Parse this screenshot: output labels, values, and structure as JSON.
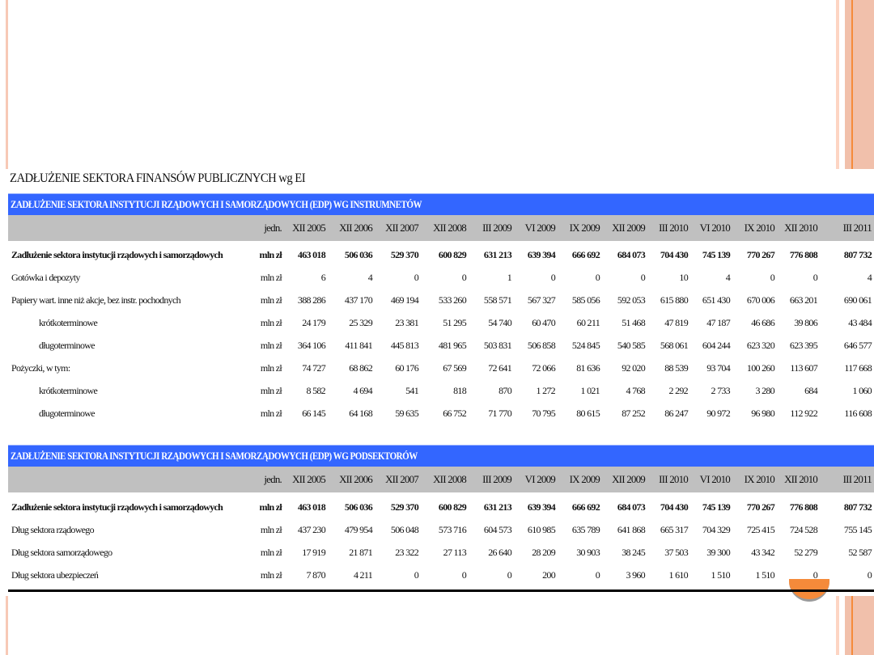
{
  "title": "ZADŁUŻENIE SEKTORA FINANSÓW PUBLICZNYCH wg EI",
  "colors": {
    "band": "#3366ff",
    "header": "#c0c0c0",
    "accent": "#f58a3a",
    "stripe": "#f1c0ab"
  },
  "unit_header": "jedn.",
  "periods": [
    "XII 2005",
    "XII 2006",
    "XII 2007",
    "XII 2008",
    "III 2009",
    "VI 2009",
    "IX 2009",
    "XII 2009",
    "III 2010",
    "VI 2010",
    "IX 2010",
    "XII 2010",
    "III 2011"
  ],
  "tables": [
    {
      "heading": "ZADŁUŻENIE SEKTORA INSTYTUCJI RZĄDOWYCH I SAMORZĄDOWYCH (EDP) WG INSTRUMNETÓW",
      "rows": [
        {
          "label": "Zadłużenie sektora instytucji rządowych i samorządowych",
          "unit": "mln zł",
          "bold": true,
          "indent": false,
          "values": [
            "463 018",
            "506 036",
            "529 370",
            "600 829",
            "631 213",
            "639 394",
            "666 692",
            "684 073",
            "704 430",
            "745 139",
            "770 267",
            "776 808",
            "807 732"
          ]
        },
        {
          "label": "Gotówka i depozyty",
          "unit": "mln zł",
          "bold": false,
          "indent": false,
          "values": [
            "6",
            "4",
            "0",
            "0",
            "1",
            "0",
            "0",
            "0",
            "10",
            "4",
            "0",
            "0",
            "4"
          ]
        },
        {
          "label": "Papiery wart. inne niż akcje, bez instr. pochodnych",
          "unit": "mln zł",
          "bold": false,
          "indent": false,
          "values": [
            "388 286",
            "437 170",
            "469 194",
            "533 260",
            "558 571",
            "567 327",
            "585 056",
            "592 053",
            "615 880",
            "651 430",
            "670 006",
            "663 201",
            "690 061"
          ]
        },
        {
          "label": "krótkoterminowe",
          "unit": "mln zł",
          "bold": false,
          "indent": true,
          "values": [
            "24 179",
            "25 329",
            "23 381",
            "51 295",
            "54 740",
            "60 470",
            "60 211",
            "51 468",
            "47 819",
            "47 187",
            "46 686",
            "39 806",
            "43 484"
          ]
        },
        {
          "label": "długoterminowe",
          "unit": "mln zł",
          "bold": false,
          "indent": true,
          "values": [
            "364 106",
            "411 841",
            "445 813",
            "481 965",
            "503 831",
            "506 858",
            "524 845",
            "540 585",
            "568 061",
            "604 244",
            "623 320",
            "623 395",
            "646 577"
          ]
        },
        {
          "label": "Pożyczki, w tym:",
          "unit": "mln zł",
          "bold": false,
          "indent": false,
          "values": [
            "74 727",
            "68 862",
            "60 176",
            "67 569",
            "72 641",
            "72 066",
            "81 636",
            "92 020",
            "88 539",
            "93 704",
            "100 260",
            "113 607",
            "117 668"
          ]
        },
        {
          "label": "krótkoterminowe",
          "unit": "mln zł",
          "bold": false,
          "indent": true,
          "values": [
            "8 582",
            "4 694",
            "541",
            "818",
            "870",
            "1 272",
            "1 021",
            "4 768",
            "2 292",
            "2 733",
            "3 280",
            "684",
            "1 060"
          ]
        },
        {
          "label": "długoterminowe",
          "unit": "mln zł",
          "bold": false,
          "indent": true,
          "values": [
            "66 145",
            "64 168",
            "59 635",
            "66 752",
            "71 770",
            "70 795",
            "80 615",
            "87 252",
            "86 247",
            "90 972",
            "96 980",
            "112 922",
            "116 608"
          ]
        }
      ]
    },
    {
      "heading": "ZADŁUŻENIE SEKTORA INSTYTUCJI RZĄDOWYCH I SAMORZĄDOWYCH (EDP) WG PODSEKTORÓW",
      "rows": [
        {
          "label": "Zadłużenie sektora instytucji rządowych i samorządowych",
          "unit": "mln zł",
          "bold": true,
          "indent": false,
          "values": [
            "463 018",
            "506 036",
            "529 370",
            "600 829",
            "631 213",
            "639 394",
            "666 692",
            "684 073",
            "704 430",
            "745 139",
            "770 267",
            "776 808",
            "807 732"
          ]
        },
        {
          "label": "Dług sektora rządowego",
          "unit": "mln zł",
          "bold": false,
          "indent": false,
          "values": [
            "437 230",
            "479 954",
            "506 048",
            "573 716",
            "604 573",
            "610 985",
            "635 789",
            "641 868",
            "665 317",
            "704 329",
            "725 415",
            "724 528",
            "755 145"
          ]
        },
        {
          "label": "Dług sektora samorządowego",
          "unit": "mln zł",
          "bold": false,
          "indent": false,
          "values": [
            "17 919",
            "21 871",
            "23 322",
            "27 113",
            "26 640",
            "28 209",
            "30 903",
            "38 245",
            "37 503",
            "39 300",
            "43 342",
            "52 279",
            "52 587"
          ]
        },
        {
          "label": "Dług sektora ubezpieczeń",
          "unit": "mln zł",
          "bold": false,
          "indent": false,
          "values": [
            "7 870",
            "4 211",
            "0",
            "0",
            "0",
            "200",
            "0",
            "3 960",
            "1 610",
            "1 510",
            "1 510",
            "0",
            "0"
          ]
        }
      ]
    }
  ]
}
